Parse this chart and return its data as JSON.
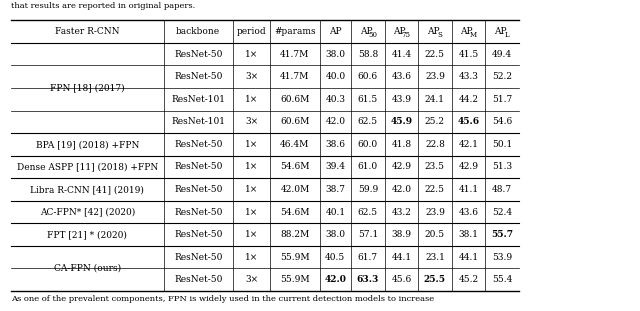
{
  "title_text": "that results are reported in original papers.",
  "footer_text": "As one of the prevalent components, FPN is widely used in the current detection models to increase",
  "rows": [
    {
      "method": "FPN [18] (2017)",
      "backbone": "ResNet-50",
      "period": "1×",
      "params": "41.7M",
      "AP": "38.0",
      "AP50": "58.8",
      "AP75": "41.4",
      "APs": "22.5",
      "APm": "41.5",
      "APl": "49.4",
      "bold": []
    },
    {
      "method": "FPN [18] (2017)",
      "backbone": "ResNet-50",
      "period": "3×",
      "params": "41.7M",
      "AP": "40.0",
      "AP50": "60.6",
      "AP75": "43.6",
      "APs": "23.9",
      "APm": "43.3",
      "APl": "52.2",
      "bold": []
    },
    {
      "method": "FPN [18] (2017)",
      "backbone": "ResNet-101",
      "period": "1×",
      "params": "60.6M",
      "AP": "40.3",
      "AP50": "61.5",
      "AP75": "43.9",
      "APs": "24.1",
      "APm": "44.2",
      "APl": "51.7",
      "bold": []
    },
    {
      "method": "FPN [18] (2017)",
      "backbone": "ResNet-101",
      "period": "3×",
      "params": "60.6M",
      "AP": "42.0",
      "AP50": "62.5",
      "AP75": "45.9",
      "APs": "25.2",
      "APm": "45.6",
      "APl": "54.6",
      "bold": [
        "AP75",
        "APm"
      ]
    },
    {
      "method": "BPA [19] (2018) +FPN",
      "backbone": "ResNet-50",
      "period": "1×",
      "params": "46.4M",
      "AP": "38.6",
      "AP50": "60.0",
      "AP75": "41.8",
      "APs": "22.8",
      "APm": "42.1",
      "APl": "50.1",
      "bold": []
    },
    {
      "method": "Dense ASPP [11] (2018) +FPN",
      "backbone": "ResNet-50",
      "period": "1×",
      "params": "54.6M",
      "AP": "39.4",
      "AP50": "61.0",
      "AP75": "42.9",
      "APs": "23.5",
      "APm": "42.9",
      "APl": "51.3",
      "bold": []
    },
    {
      "method": "Libra R-CNN [41] (2019)",
      "backbone": "ResNet-50",
      "period": "1×",
      "params": "42.0M",
      "AP": "38.7",
      "AP50": "59.9",
      "AP75": "42.0",
      "APs": "22.5",
      "APm": "41.1",
      "APl": "48.7",
      "bold": []
    },
    {
      "method": "AC-FPN* [42] (2020)",
      "backbone": "ResNet-50",
      "period": "1×",
      "params": "54.6M",
      "AP": "40.1",
      "AP50": "62.5",
      "AP75": "43.2",
      "APs": "23.9",
      "APm": "43.6",
      "APl": "52.4",
      "bold": []
    },
    {
      "method": "FPT [21] * (2020)",
      "backbone": "ResNet-50",
      "period": "1×",
      "params": "88.2M",
      "AP": "38.0",
      "AP50": "57.1",
      "AP75": "38.9",
      "APs": "20.5",
      "APm": "38.1",
      "APl": "55.7",
      "bold": [
        "APl"
      ]
    },
    {
      "method": "CA-FPN (ours)",
      "backbone": "ResNet-50",
      "period": "1×",
      "params": "55.9M",
      "AP": "40.5",
      "AP50": "61.7",
      "AP75": "44.1",
      "APs": "23.1",
      "APm": "44.1",
      "APl": "53.9",
      "bold": []
    },
    {
      "method": "CA-FPN (ours)",
      "backbone": "ResNet-50",
      "period": "3×",
      "params": "55.9M",
      "AP": "42.0",
      "AP50": "63.3",
      "AP75": "45.6",
      "APs": "25.5",
      "APm": "45.2",
      "APl": "55.4",
      "bold": [
        "AP",
        "AP50",
        "APs"
      ]
    }
  ],
  "method_groups": [
    {
      "name": "FPN [18] (2017)",
      "rows": [
        0,
        1,
        2,
        3
      ]
    },
    {
      "name": "BPA [19] (2018) +FPN",
      "rows": [
        4
      ]
    },
    {
      "name": "Dense ASPP [11] (2018) +FPN",
      "rows": [
        5
      ]
    },
    {
      "name": "Libra R-CNN [41] (2019)",
      "rows": [
        6
      ]
    },
    {
      "name": "AC-FPN* [42] (2020)",
      "rows": [
        7
      ]
    },
    {
      "name": "FPT [21] * (2020)",
      "rows": [
        8
      ]
    },
    {
      "name": "CA-FPN (ours)",
      "rows": [
        9,
        10
      ]
    }
  ],
  "col_headers": [
    "backbone",
    "period",
    "#params",
    "AP",
    "AP50",
    "AP75",
    "APs",
    "APm",
    "APl"
  ],
  "col_subs": [
    "",
    "",
    "",
    "",
    "50",
    "75",
    "S",
    "M",
    "L"
  ],
  "bg_color": "#ffffff",
  "text_color": "#000000"
}
